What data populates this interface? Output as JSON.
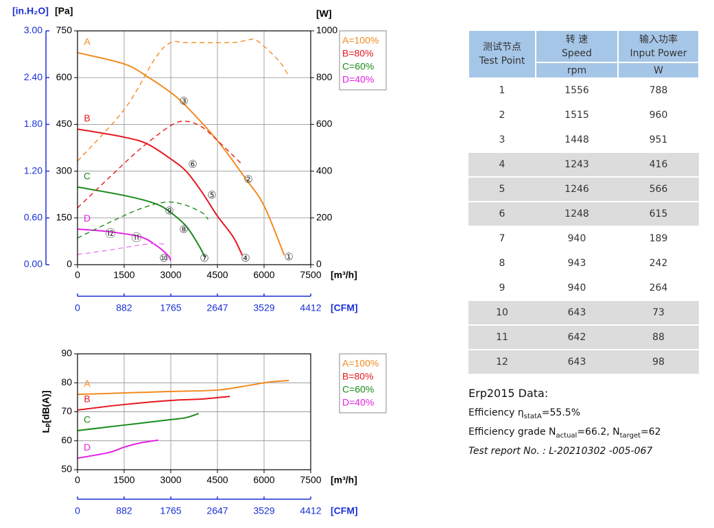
{
  "chart_data": [
    {
      "type": "line",
      "xlabel": "[m³/h]",
      "ylabel": "[Pa]",
      "y2label": "[W]",
      "y3label": "[in.H₂O]",
      "x2label": "[CFM]",
      "xlim": [
        0,
        7500
      ],
      "xticks": [
        0,
        1500,
        3000,
        4500,
        6000,
        7500
      ],
      "ylim": [
        0,
        750
      ],
      "yticks": [
        0,
        150,
        300,
        450,
        600,
        750
      ],
      "y2lim": [
        0,
        1000
      ],
      "y2ticks": [
        0,
        200,
        400,
        600,
        800,
        1000
      ],
      "y3lim": [
        0,
        3
      ],
      "y3ticks": [
        {
          "value": 0,
          "label": "0.00"
        },
        {
          "value": 0.6,
          "label": "0.60"
        },
        {
          "value": 1.2,
          "label": "1.20"
        },
        {
          "value": 1.8,
          "label": "1.80"
        },
        {
          "value": 2.4,
          "label": "2.40"
        },
        {
          "value": 3,
          "label": "3.00"
        }
      ],
      "x2lim": [
        0,
        4412
      ],
      "x2ticks": [
        0,
        882,
        1765,
        2647,
        3529,
        4412
      ],
      "grid": true,
      "legend": "right",
      "series": [
        {
          "name": "A=100%",
          "label": "A",
          "color": "#f28a1e",
          "x": [
            0,
            1500,
            2250,
            3000,
            3500,
            4500,
            5400,
            6000,
            6650
          ],
          "values": [
            680,
            644,
            603,
            552,
            508,
            398,
            277,
            189,
            30
          ]
        },
        {
          "name": "B=80%",
          "label": "B",
          "color": "#e5161d",
          "x": [
            0,
            1500,
            2250,
            3000,
            3500,
            4000,
            4500,
            5000,
            5300
          ],
          "values": [
            435,
            409,
            387,
            339,
            299,
            233,
            156,
            90,
            30
          ]
        },
        {
          "name": "C=60%",
          "label": "C",
          "color": "#1a8a1a",
          "x": [
            0,
            1500,
            2500,
            3000,
            3500,
            3900,
            4100
          ],
          "values": [
            249,
            222,
            196,
            167,
            123,
            62,
            24
          ]
        },
        {
          "name": "D=40%",
          "label": "D",
          "color": "#e41ee4",
          "x": [
            0,
            1000,
            2000,
            2500,
            2900,
            3000
          ],
          "values": [
            114,
            106,
            90,
            64,
            31,
            13
          ]
        },
        {
          "color": "#f28a1e",
          "axis": "y2",
          "dashed": true,
          "x": [
            0,
            1500,
            2500,
            3000,
            3500,
            5000,
            5500,
            5800,
            6500,
            6800
          ],
          "values": [
            443,
            663,
            883,
            950,
            950,
            950,
            962,
            956,
            868,
            803
          ]
        },
        {
          "color": "#e5161d",
          "axis": "y2",
          "dashed": true,
          "x": [
            0,
            1000,
            2000,
            3000,
            3500,
            4000,
            4500,
            5300
          ],
          "values": [
            243,
            370,
            493,
            595,
            613,
            589,
            531,
            428
          ]
        },
        {
          "color": "#1a8a1a",
          "axis": "y2",
          "dashed": true,
          "x": [
            0,
            1000,
            2000,
            2800,
            3400,
            4000,
            4200
          ],
          "values": [
            114,
            179,
            238,
            267,
            258,
            223,
            194
          ]
        },
        {
          "color": "#ee80ee",
          "axis": "y2",
          "dashed": true,
          "x": [
            0,
            1000,
            2000,
            2500,
            2800
          ],
          "values": [
            44,
            62,
            84,
            90,
            88
          ]
        }
      ],
      "annotations": [
        {
          "text": "①",
          "x": 6795,
          "y": 24
        },
        {
          "text": "②",
          "x": 5493,
          "y": 273
        },
        {
          "text": "③",
          "x": 3419,
          "y": 523
        },
        {
          "text": "④",
          "x": 5405,
          "y": 20
        },
        {
          "text": "⑤",
          "x": 4324,
          "y": 222
        },
        {
          "text": "⑥",
          "x": 3706,
          "y": 321
        },
        {
          "text": "⑦",
          "x": 4081,
          "y": 20
        },
        {
          "text": "⑧",
          "x": 3419,
          "y": 112
        },
        {
          "text": "⑨",
          "x": 2956,
          "y": 172
        },
        {
          "text": "⑩",
          "x": 2780,
          "y": 20
        },
        {
          "text": "⑪",
          "x": 1897,
          "y": 86
        },
        {
          "text": "⑫",
          "x": 1059,
          "y": 99
        }
      ]
    },
    {
      "type": "line",
      "xlabel": "[m³/h]",
      "ylabel": "Lₚ[dB(A)]",
      "x2label": "[CFM]",
      "xlim": [
        0,
        7500
      ],
      "xticks": [
        0,
        1500,
        3000,
        4500,
        6000,
        7500
      ],
      "ylim": [
        50,
        90
      ],
      "yticks": [
        50,
        60,
        70,
        80,
        90
      ],
      "x2lim": [
        0,
        4412
      ],
      "x2ticks": [
        0,
        882,
        1765,
        2647,
        3529,
        4412
      ],
      "grid": true,
      "legend": "right",
      "series": [
        {
          "name": "A=100%",
          "label": "A",
          "color": "#f28a1e",
          "x": [
            0,
            1500,
            3000,
            4500,
            5500,
            6200,
            6800
          ],
          "values": [
            76.0,
            76.5,
            77.0,
            77.5,
            79.1,
            80.3,
            80.8
          ]
        },
        {
          "name": "B=80%",
          "label": "B",
          "color": "#e5161d",
          "x": [
            0,
            1500,
            3000,
            4000,
            4900
          ],
          "values": [
            70.6,
            72.5,
            73.9,
            74.4,
            75.3
          ]
        },
        {
          "name": "C=60%",
          "label": "C",
          "color": "#1a8a1a",
          "x": [
            0,
            1500,
            3000,
            3500,
            3900
          ],
          "values": [
            63.5,
            65.4,
            67.3,
            68.0,
            69.4
          ]
        },
        {
          "name": "D=40%",
          "label": "D",
          "color": "#e41ee4",
          "x": [
            0,
            1000,
            1500,
            2000,
            2600
          ],
          "values": [
            54.0,
            55.9,
            57.8,
            59.2,
            60.2
          ]
        }
      ]
    }
  ],
  "table": {
    "columns": [
      {
        "lines": [
          "测试节点",
          "Test Point"
        ]
      },
      {
        "lines": [
          "转 速",
          "Speed"
        ],
        "unit": "rpm"
      },
      {
        "lines": [
          "输入功率",
          "Input Power"
        ],
        "unit": "W"
      }
    ],
    "rows": [
      [
        1,
        1556,
        788
      ],
      [
        2,
        1515,
        960
      ],
      [
        3,
        1448,
        951
      ],
      [
        4,
        1243,
        416
      ],
      [
        5,
        1246,
        566
      ],
      [
        6,
        1248,
        615
      ],
      [
        7,
        940,
        189
      ],
      [
        8,
        943,
        242
      ],
      [
        9,
        940,
        264
      ],
      [
        10,
        643,
        73
      ],
      [
        11,
        642,
        88
      ],
      [
        12,
        643,
        98
      ]
    ]
  },
  "erp": {
    "title": "Erp2015  Data:",
    "efficiency": {
      "label": "Efficiency η",
      "sub": "statA",
      "value": "=55.5%"
    },
    "grade": {
      "label": "Efficiency grade  N",
      "sub1": "actual",
      "mid": "=66.2, N",
      "sub2": "target",
      "end": "=62"
    },
    "report": "Test report No. : L-20210302 -005-067"
  }
}
